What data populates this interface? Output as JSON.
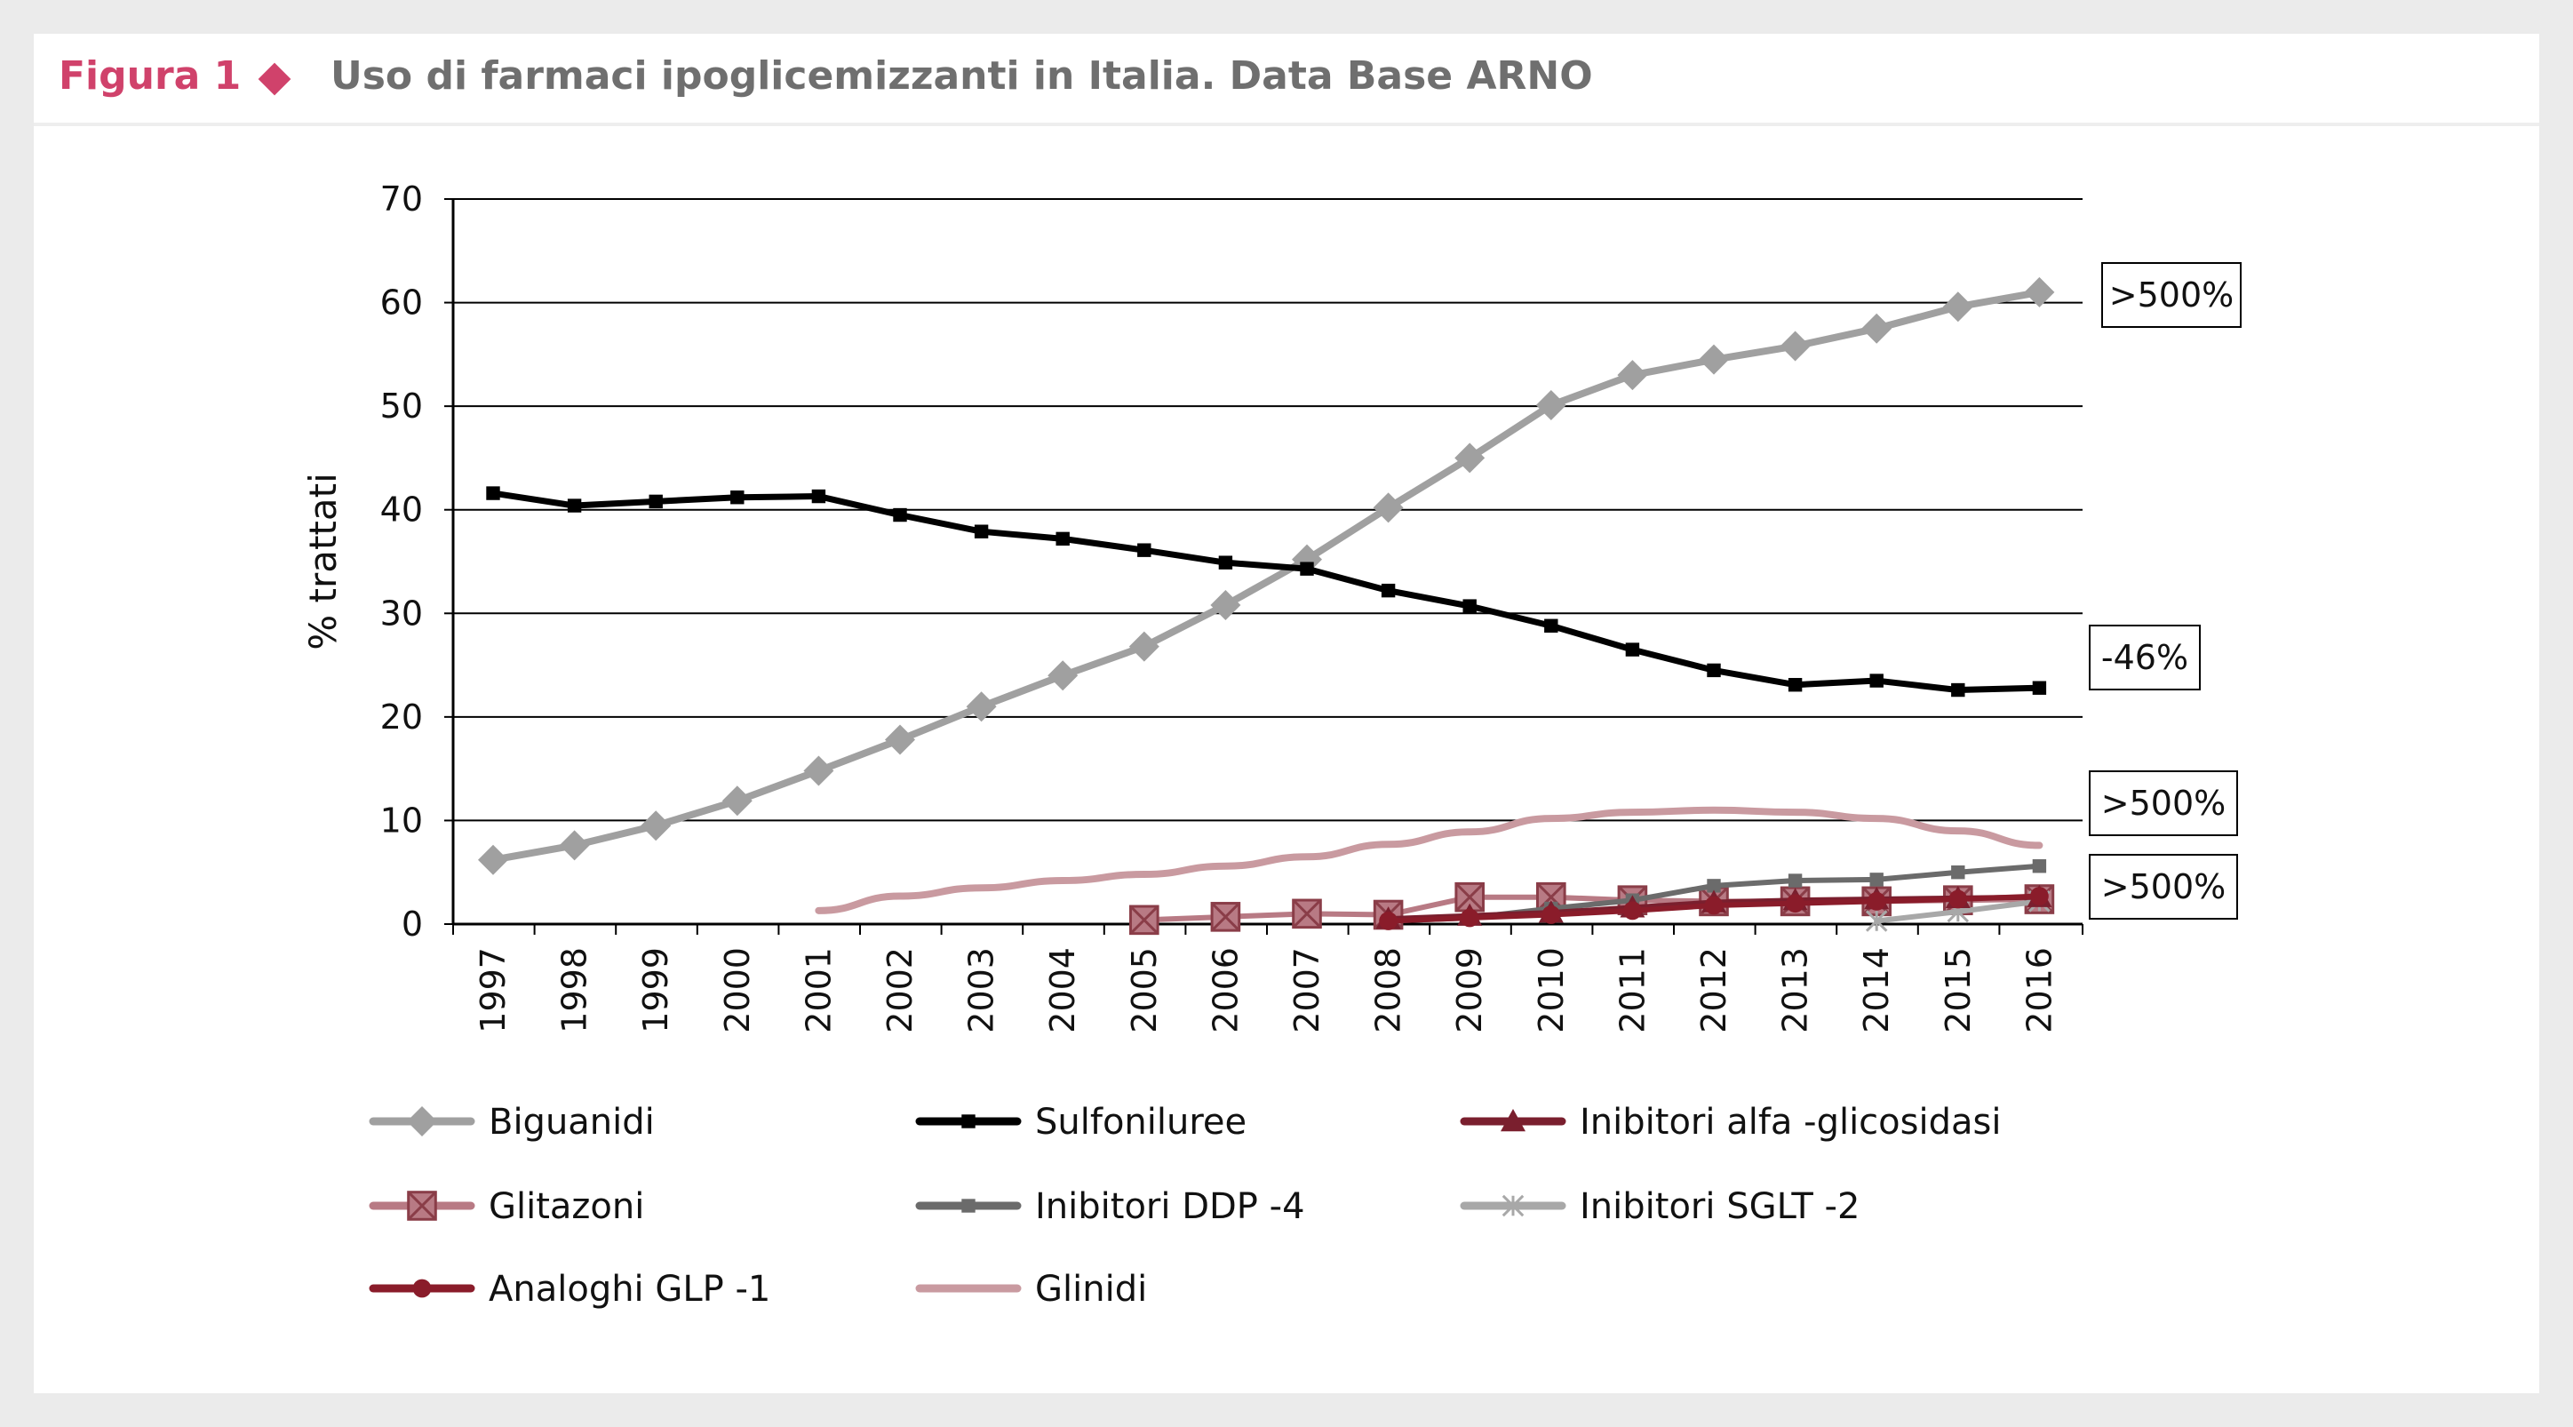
{
  "figure": {
    "label": "Figura 1",
    "title": "Uso di farmaci ipoglicemizzanti in Italia. Data Base ARNO"
  },
  "chart_data": {
    "type": "line",
    "ylabel": "% trattati",
    "xlabel": "",
    "ylim": [
      0,
      70
    ],
    "yticks": [
      0,
      10,
      20,
      30,
      40,
      50,
      60,
      70
    ],
    "grid": true,
    "legend_position": "bottom",
    "categories": [
      "1997",
      "1998",
      "1999",
      "2000",
      "2001",
      "2002",
      "2003",
      "2004",
      "2005",
      "2006",
      "2007",
      "2008",
      "2009",
      "2010",
      "2011",
      "2012",
      "2013",
      "2014",
      "2015",
      "2016"
    ],
    "series": [
      {
        "name": "Biguanidi",
        "color": "#a0a0a0",
        "marker": "diamond",
        "values": [
          6.2,
          7.6,
          9.5,
          11.9,
          14.8,
          17.8,
          21.0,
          24.0,
          26.8,
          30.8,
          35.2,
          40.2,
          45.0,
          50.1,
          53.0,
          54.5,
          55.8,
          57.5,
          59.6,
          61.0
        ]
      },
      {
        "name": "Sulfoniluree",
        "color": "#000000",
        "marker": "square",
        "values": [
          41.6,
          40.4,
          40.8,
          41.2,
          41.3,
          39.5,
          37.9,
          37.2,
          36.1,
          34.9,
          34.3,
          32.2,
          30.7,
          28.8,
          26.5,
          24.5,
          23.1,
          23.5,
          22.6,
          22.8
        ]
      },
      {
        "name": "Inibitori alfa -glicosidasi",
        "color": "#7a1f2e",
        "marker": "triangle",
        "values": [
          null,
          null,
          null,
          null,
          null,
          null,
          null,
          null,
          null,
          null,
          null,
          0.5,
          0.8,
          1.1,
          1.6,
          2.1,
          2.3,
          2.4,
          2.5,
          2.6
        ]
      },
      {
        "name": "Glitazoni",
        "color": "#b87a84",
        "marker": "square-x",
        "values": [
          null,
          null,
          null,
          null,
          null,
          null,
          null,
          null,
          0.4,
          0.7,
          1.0,
          0.9,
          2.6,
          2.6,
          2.3,
          2.2,
          2.2,
          2.2,
          2.3,
          2.4
        ]
      },
      {
        "name": "Inibitori DDP -4",
        "color": "#6b6b6b",
        "marker": "square",
        "values": [
          null,
          null,
          null,
          null,
          null,
          null,
          null,
          null,
          null,
          null,
          null,
          0.3,
          0.6,
          1.5,
          2.3,
          3.7,
          4.2,
          4.3,
          5.0,
          5.6
        ]
      },
      {
        "name": "Inibitori SGLT -2",
        "color": "#a8a8a8",
        "marker": "asterisk",
        "values": [
          null,
          null,
          null,
          null,
          null,
          null,
          null,
          null,
          null,
          null,
          null,
          null,
          null,
          null,
          null,
          null,
          null,
          0.3,
          1.2,
          2.2
        ]
      },
      {
        "name": "Analoghi GLP -1",
        "color": "#8a1c2a",
        "marker": "circle",
        "values": [
          null,
          null,
          null,
          null,
          null,
          null,
          null,
          null,
          null,
          null,
          null,
          0.3,
          0.6,
          0.9,
          1.3,
          1.8,
          2.0,
          2.2,
          2.4,
          2.7
        ]
      },
      {
        "name": "Glinidi",
        "color": "#c99aa0",
        "marker": "none",
        "values": [
          null,
          null,
          null,
          null,
          1.3,
          2.7,
          3.5,
          4.2,
          4.8,
          5.6,
          6.5,
          7.7,
          8.9,
          10.2,
          10.8,
          11.0,
          10.8,
          10.2,
          9.0,
          7.6
        ]
      }
    ],
    "annotations": [
      ">500%",
      "-46%",
      ">500%",
      ">500%"
    ]
  }
}
